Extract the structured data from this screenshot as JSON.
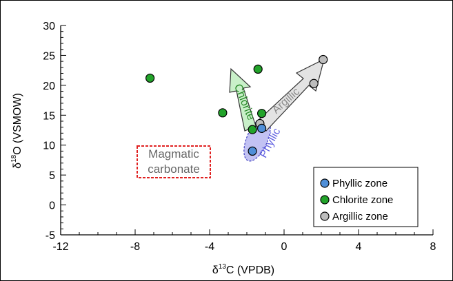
{
  "chart_data": {
    "type": "scatter",
    "xlabel_symbol": "δ",
    "xlabel_sup": "13",
    "xlabel_rest": "C (VPDB)",
    "ylabel_symbol": "δ",
    "ylabel_sup": "18",
    "ylabel_rest": "O (VSMOW)",
    "xlim": [
      -12,
      8
    ],
    "ylim": [
      -5,
      30
    ],
    "x_ticks": [
      "-12",
      "-8",
      "-4",
      "0",
      "4",
      "8"
    ],
    "y_ticks": [
      "-5",
      "0",
      "5",
      "10",
      "15",
      "20",
      "25",
      "30"
    ],
    "grid": false,
    "legend_position": "bottom-right",
    "series": [
      {
        "name": "Phyllic zone",
        "color": "#4f8fd8",
        "points": [
          {
            "x": -1.7,
            "y": 9.0
          },
          {
            "x": -1.2,
            "y": 12.8
          }
        ]
      },
      {
        "name": "Chlorite zone",
        "color": "#22a32a",
        "points": [
          {
            "x": -7.2,
            "y": 21.2
          },
          {
            "x": -1.4,
            "y": 22.7
          },
          {
            "x": -3.3,
            "y": 15.4
          },
          {
            "x": -1.2,
            "y": 15.3
          },
          {
            "x": -1.7,
            "y": 12.6
          }
        ]
      },
      {
        "name": "Argillic zone",
        "color": "#bdbdbd",
        "points": [
          {
            "x": -1.3,
            "y": 13.6
          },
          {
            "x": 1.6,
            "y": 20.3
          },
          {
            "x": 2.1,
            "y": 24.3
          }
        ]
      }
    ],
    "annotations": {
      "magmatic_line1": "Magmatic",
      "magmatic_line2": "carbonate",
      "chlorite_label": "Chlorite",
      "argillic_label": "Argillic",
      "phyllic_label": "Phyllic"
    },
    "colors": {
      "magmatic_box": "#e02020",
      "chlorite_arrow": "#c9f0c9",
      "argillic_arrow": "#e3e3e3",
      "phyllic_ellipse": "#b3b3f0",
      "phyllic_text": "#6060e0",
      "argillic_text": "#8a8a8a",
      "chlorite_text": "#2a8a2a"
    }
  }
}
